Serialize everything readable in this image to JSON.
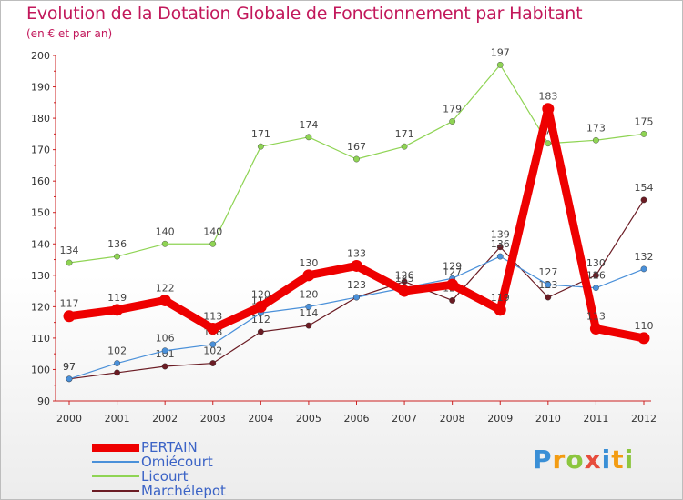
{
  "chart_data": {
    "type": "line",
    "title": "Evolution de la Dotation Globale de Fonctionnement par Habitant",
    "subtitle": "(en € et par an)",
    "xlabel": "",
    "ylabel": "",
    "ylim": [
      90,
      200
    ],
    "yticks": [
      90,
      100,
      110,
      120,
      130,
      140,
      150,
      160,
      170,
      180,
      190,
      200
    ],
    "categories": [
      "2000",
      "2001",
      "2002",
      "2003",
      "2004",
      "2005",
      "2006",
      "2007",
      "2008",
      "2009",
      "2010",
      "2011",
      "2012"
    ],
    "series": [
      {
        "name": "Marchélepot",
        "color": "#6b1c24",
        "values": [
          97,
          99,
          101,
          102,
          112,
          114,
          123,
          128,
          122,
          139,
          123,
          130,
          154
        ],
        "labels": [
          "97",
          "",
          "101",
          "102",
          "112",
          "114",
          "",
          "",
          "122",
          "139",
          "123",
          "130",
          "154"
        ]
      },
      {
        "name": "Licourt",
        "color": "#8fd454",
        "values": [
          134,
          136,
          140,
          140,
          171,
          174,
          167,
          171,
          179,
          197,
          172,
          173,
          175
        ],
        "labels": [
          "134",
          "136",
          "140",
          "140",
          "171",
          "174",
          "167",
          "171",
          "179",
          "197",
          "172",
          "173",
          "175"
        ]
      },
      {
        "name": "Omiécourt",
        "color": "#4a90d9",
        "values": [
          97,
          102,
          106,
          108,
          118,
          120,
          123,
          126,
          129,
          136,
          127,
          126,
          132
        ],
        "labels": [
          "97",
          "102",
          "106",
          "108",
          "118",
          "120",
          "123",
          "126",
          "129",
          "136",
          "127",
          "126",
          "132"
        ]
      },
      {
        "name": "PERTAIN",
        "color": "#ee0000",
        "values": [
          117,
          119,
          122,
          113,
          120,
          130,
          133,
          125,
          127,
          119,
          183,
          113,
          110
        ],
        "labels": [
          "117",
          "119",
          "122",
          "113",
          "120",
          "130",
          "133",
          "125",
          "127",
          "119",
          "183",
          "113",
          "110"
        ]
      }
    ],
    "legend": [
      "PERTAIN",
      "Omiécourt",
      "Licourt",
      "Marchélepot"
    ],
    "grid": false
  },
  "logo": {
    "letters": [
      "P",
      "r",
      "o",
      "x",
      "i",
      "t",
      "i"
    ],
    "colors": [
      "#3a8fd6",
      "#f39c12",
      "#8cc63f",
      "#e74c3c",
      "#3a8fd6",
      "#f39c12",
      "#8cc63f"
    ]
  }
}
